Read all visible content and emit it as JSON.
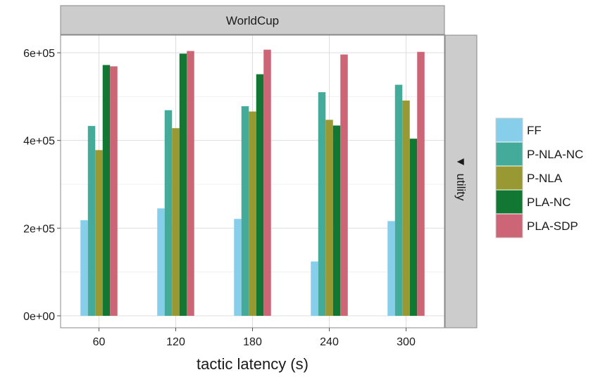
{
  "chart_data": {
    "type": "bar",
    "facet_top": "WorldCup",
    "facet_right": "utility",
    "facet_right_marker": "▼",
    "xlabel": "tactic latency (s)",
    "ylabel": "",
    "categories": [
      "60",
      "120",
      "180",
      "240",
      "300"
    ],
    "ylim": [
      0,
      630000
    ],
    "yticks": [
      0,
      200000,
      400000,
      600000
    ],
    "ytick_labels": [
      "0e+00",
      "2e+05",
      "4e+05",
      "6e+05"
    ],
    "grid": true,
    "legend_position": "right",
    "series": [
      {
        "name": "FF",
        "color": "#87ceeb",
        "values": [
          218000,
          245000,
          221000,
          124000,
          216000
        ]
      },
      {
        "name": "P-NLA-NC",
        "color": "#44aa99",
        "values": [
          433000,
          469000,
          478000,
          510000,
          527000
        ]
      },
      {
        "name": "P-NLA",
        "color": "#999933",
        "values": [
          378000,
          428000,
          466000,
          447000,
          491000
        ]
      },
      {
        "name": "PLA-NC",
        "color": "#117733",
        "values": [
          572000,
          598000,
          551000,
          434000,
          404000
        ]
      },
      {
        "name": "PLA-SDP",
        "color": "#cc6677",
        "values": [
          569000,
          604000,
          607000,
          596000,
          602000
        ]
      }
    ]
  }
}
